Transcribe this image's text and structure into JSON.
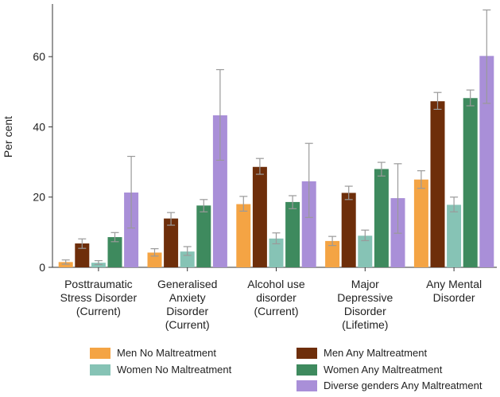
{
  "chart_data": {
    "type": "bar",
    "title": "",
    "xlabel": "",
    "ylabel": "Per cent",
    "ylim": [
      0,
      75
    ],
    "yticks": [
      0,
      20,
      40,
      60
    ],
    "grid": false,
    "legend_position": "bottom",
    "categories": [
      [
        "Posttraumatic",
        "Stress Disorder",
        "(Current)"
      ],
      [
        "Generalised",
        "Anxiety",
        "Disorder",
        "(Current)"
      ],
      [
        "Alcohol use",
        "disorder",
        "(Current)"
      ],
      [
        "Major",
        "Depressive",
        "Disorder",
        "(Lifetime)"
      ],
      [
        "Any Mental",
        "Disorder"
      ]
    ],
    "series": [
      {
        "name": "Men No Maltreatment",
        "color": "#F4A444",
        "values": [
          1.5,
          4.2,
          18.0,
          7.5,
          25.0
        ],
        "ci_low": [
          0.9,
          3.2,
          16.0,
          6.2,
          22.5
        ],
        "ci_high": [
          2.1,
          5.3,
          20.2,
          8.8,
          27.5
        ]
      },
      {
        "name": "Men Any Maltreatment",
        "color": "#6E2E0A",
        "values": [
          6.8,
          13.9,
          28.6,
          21.2,
          47.3
        ],
        "ci_low": [
          5.4,
          12.0,
          26.5,
          19.3,
          45.0
        ],
        "ci_high": [
          8.1,
          15.6,
          31.0,
          23.1,
          49.8
        ]
      },
      {
        "name": "Women No Maltreatment",
        "color": "#86C3B5",
        "values": [
          1.3,
          4.5,
          8.2,
          9.0,
          17.8
        ],
        "ci_low": [
          0.8,
          3.4,
          6.7,
          7.6,
          15.8
        ],
        "ci_high": [
          1.9,
          5.9,
          9.8,
          10.6,
          20.0
        ]
      },
      {
        "name": "Women Any Maltreatment",
        "color": "#3E8A5E",
        "values": [
          8.6,
          17.6,
          18.6,
          28.0,
          48.2
        ],
        "ci_low": [
          7.3,
          15.8,
          16.7,
          26.0,
          46.0
        ],
        "ci_high": [
          9.9,
          19.3,
          20.4,
          29.9,
          50.5
        ]
      },
      {
        "name": "Diverse genders Any Maltreatment",
        "color": "#A98FD8",
        "values": [
          21.3,
          43.3,
          24.5,
          19.7,
          60.2
        ],
        "ci_low": [
          11.2,
          30.5,
          14.2,
          9.7,
          46.7
        ],
        "ci_high": [
          31.6,
          56.3,
          35.3,
          29.5,
          73.3
        ]
      }
    ]
  }
}
